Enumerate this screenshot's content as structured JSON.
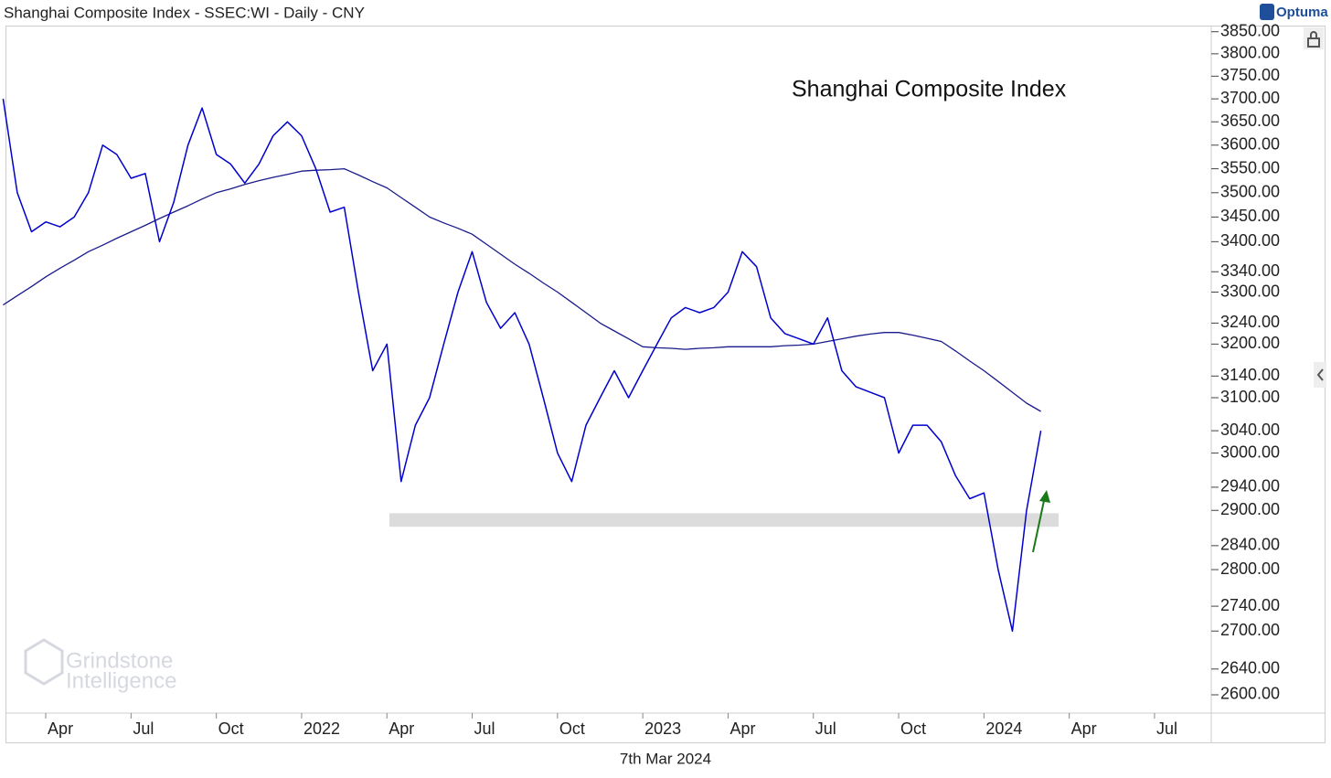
{
  "header": {
    "title": "Shanghai Composite Index - SSEC:WI - Daily - CNY",
    "brand": "Optuma"
  },
  "footer": {
    "date": "7th Mar 2024"
  },
  "watermark": [
    "Grindstone",
    "Intelligence"
  ],
  "chart_data": {
    "type": "line",
    "annotation": "Shanghai Composite Index",
    "log_scale": true,
    "categories": [
      null,
      null,
      null,
      "Apr",
      null,
      null,
      null,
      null,
      null,
      "Jul",
      null,
      null,
      null,
      null,
      null,
      "Oct",
      null,
      null,
      null,
      null,
      null,
      "2022",
      null,
      null,
      null,
      null,
      null,
      "Apr",
      null,
      null,
      null,
      null,
      null,
      "Jul",
      null,
      null,
      null,
      null,
      null,
      "Oct",
      null,
      null,
      null,
      null,
      null,
      "2023",
      null,
      null,
      null,
      null,
      null,
      "Apr",
      null,
      null,
      null,
      null,
      null,
      "Jul",
      null,
      null,
      null,
      null,
      null,
      "Oct",
      null,
      null,
      null,
      null,
      null,
      "2024",
      null,
      null,
      null,
      null,
      null,
      "Apr",
      null,
      null,
      null,
      null,
      null,
      "Jul",
      null,
      null,
      null,
      null
    ],
    "series": [
      {
        "color": "#0000cc",
        "values": [
          3700,
          3500,
          3420,
          3440,
          3430,
          3450,
          3500,
          3600,
          3580,
          3530,
          3540,
          3400,
          3480,
          3600,
          3680,
          3580,
          3560,
          3520,
          3560,
          3620,
          3650,
          3620,
          3550,
          3460,
          3470,
          3300,
          3150,
          3200,
          2950,
          3050,
          3100,
          3200,
          3300,
          3380,
          3280,
          3230,
          3260,
          3200,
          3100,
          3000,
          2950,
          3050,
          3100,
          3150,
          3100,
          3150,
          3200,
          3250,
          3270,
          3260,
          3270,
          3300,
          3380,
          3350,
          3250,
          3220,
          3210,
          3200,
          3250,
          3150,
          3120,
          3110,
          3100,
          3000,
          3050,
          3050,
          3020,
          2960,
          2920,
          2930,
          2800,
          2700,
          2900,
          3040,
          null,
          null,
          null,
          null,
          null,
          null,
          null,
          null,
          null,
          null,
          null,
          null
        ]
      },
      {
        "color": "#1a1a8c",
        "values": [
          3275,
          3293,
          3311,
          3330,
          3347,
          3363,
          3380,
          3393,
          3407,
          3420,
          3433,
          3447,
          3460,
          3473,
          3487,
          3500,
          3508,
          3517,
          3525,
          3532,
          3538,
          3545,
          3547,
          3548,
          3550,
          3537,
          3523,
          3510,
          3490,
          3470,
          3450,
          3438,
          3427,
          3415,
          3395,
          3375,
          3355,
          3337,
          3318,
          3300,
          3280,
          3260,
          3240,
          3225,
          3210,
          3195,
          3193,
          3192,
          3190,
          3192,
          3193,
          3195,
          3195,
          3195,
          3195,
          3197,
          3198,
          3200,
          3205,
          3210,
          3215,
          3219,
          3222,
          3222,
          3217,
          3211,
          3205,
          3187,
          3168,
          3150,
          3130,
          3110,
          3090,
          3075,
          null,
          null,
          null,
          null,
          null,
          null,
          null,
          null,
          null,
          null,
          null,
          null
        ]
      }
    ],
    "support_zone": [
      2872,
      2895
    ],
    "ylim": [
      2572,
      3864
    ],
    "yticks": [
      {
        "value": 3850,
        "label": "3850.00"
      },
      {
        "value": 3800,
        "label": "3800.00"
      },
      {
        "value": 3750,
        "label": "3750.00"
      },
      {
        "value": 3700,
        "label": "3700.00"
      },
      {
        "value": 3650,
        "label": "3650.00"
      },
      {
        "value": 3600,
        "label": "3600.00"
      },
      {
        "value": 3550,
        "label": "3550.00"
      },
      {
        "value": 3500,
        "label": "3500.00"
      },
      {
        "value": 3450,
        "label": "3450.00"
      },
      {
        "value": 3400,
        "label": "3400.00"
      },
      {
        "value": 3340,
        "label": "3340.00"
      },
      {
        "value": 3300,
        "label": "3300.00"
      },
      {
        "value": 3240,
        "label": "3240.00"
      },
      {
        "value": 3200,
        "label": "3200.00"
      },
      {
        "value": 3140,
        "label": "3140.00"
      },
      {
        "value": 3100,
        "label": "3100.00"
      },
      {
        "value": 3040,
        "label": "3040.00"
      },
      {
        "value": 3000,
        "label": "3000.00"
      },
      {
        "value": 2940,
        "label": "2940.00"
      },
      {
        "value": 2900,
        "label": "2900.00"
      },
      {
        "value": 2840,
        "label": "2840.00"
      },
      {
        "value": 2800,
        "label": "2800.00"
      },
      {
        "value": 2740,
        "label": "2740.00"
      },
      {
        "value": 2700,
        "label": "2700.00"
      },
      {
        "value": 2640,
        "label": "2640.00"
      },
      {
        "value": 2600,
        "label": "2600.00"
      }
    ],
    "grid": false
  }
}
